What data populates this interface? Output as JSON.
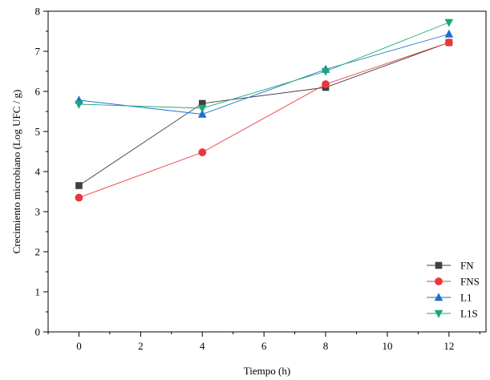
{
  "chart_data": {
    "type": "line",
    "title": "",
    "xlabel": "Tiempo (h)",
    "ylabel": "Crecimiento microbiano (Log UFC / g)",
    "xlim": [
      -1,
      13.2
    ],
    "ylim": [
      0,
      8
    ],
    "xticks": [
      0,
      2,
      4,
      6,
      8,
      10,
      12
    ],
    "yticks": [
      0,
      1,
      2,
      3,
      4,
      5,
      6,
      7,
      8
    ],
    "x": [
      0,
      4,
      8,
      12
    ],
    "legend_position": "bottom-right",
    "grid": false,
    "series": [
      {
        "name": "FN",
        "values": [
          3.65,
          5.7,
          6.1,
          7.22
        ],
        "color": "#404040",
        "marker": "square"
      },
      {
        "name": "FNS",
        "values": [
          3.35,
          4.48,
          6.18,
          7.22
        ],
        "color": "#e8383d",
        "marker": "circle"
      },
      {
        "name": "L1",
        "values": [
          5.78,
          5.43,
          6.55,
          7.43
        ],
        "color": "#1f6fd1",
        "marker": "triangle-up"
      },
      {
        "name": "L1S",
        "values": [
          5.68,
          5.58,
          6.5,
          7.72
        ],
        "color": "#1aa872",
        "marker": "triangle-down"
      }
    ]
  }
}
